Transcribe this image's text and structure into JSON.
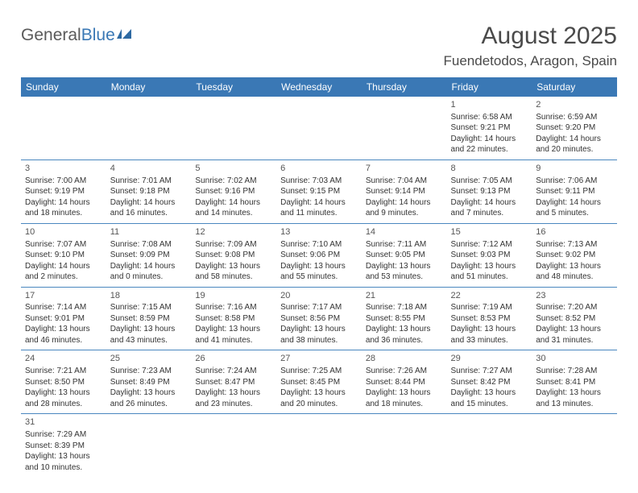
{
  "brand": {
    "part1": "General",
    "part2": "Blue"
  },
  "title": "August 2025",
  "location": "Fuendetodos, Aragon, Spain",
  "day_headers": [
    "Sunday",
    "Monday",
    "Tuesday",
    "Wednesday",
    "Thursday",
    "Friday",
    "Saturday"
  ],
  "colors": {
    "header_bg": "#3a78b5",
    "header_fg": "#ffffff",
    "border": "#4a87bf",
    "text": "#333333",
    "title": "#4a4a4a"
  },
  "weeks": [
    [
      null,
      null,
      null,
      null,
      null,
      {
        "n": "1",
        "sr": "Sunrise: 6:58 AM",
        "ss": "Sunset: 9:21 PM",
        "dl": "Daylight: 14 hours and 22 minutes."
      },
      {
        "n": "2",
        "sr": "Sunrise: 6:59 AM",
        "ss": "Sunset: 9:20 PM",
        "dl": "Daylight: 14 hours and 20 minutes."
      }
    ],
    [
      {
        "n": "3",
        "sr": "Sunrise: 7:00 AM",
        "ss": "Sunset: 9:19 PM",
        "dl": "Daylight: 14 hours and 18 minutes."
      },
      {
        "n": "4",
        "sr": "Sunrise: 7:01 AM",
        "ss": "Sunset: 9:18 PM",
        "dl": "Daylight: 14 hours and 16 minutes."
      },
      {
        "n": "5",
        "sr": "Sunrise: 7:02 AM",
        "ss": "Sunset: 9:16 PM",
        "dl": "Daylight: 14 hours and 14 minutes."
      },
      {
        "n": "6",
        "sr": "Sunrise: 7:03 AM",
        "ss": "Sunset: 9:15 PM",
        "dl": "Daylight: 14 hours and 11 minutes."
      },
      {
        "n": "7",
        "sr": "Sunrise: 7:04 AM",
        "ss": "Sunset: 9:14 PM",
        "dl": "Daylight: 14 hours and 9 minutes."
      },
      {
        "n": "8",
        "sr": "Sunrise: 7:05 AM",
        "ss": "Sunset: 9:13 PM",
        "dl": "Daylight: 14 hours and 7 minutes."
      },
      {
        "n": "9",
        "sr": "Sunrise: 7:06 AM",
        "ss": "Sunset: 9:11 PM",
        "dl": "Daylight: 14 hours and 5 minutes."
      }
    ],
    [
      {
        "n": "10",
        "sr": "Sunrise: 7:07 AM",
        "ss": "Sunset: 9:10 PM",
        "dl": "Daylight: 14 hours and 2 minutes."
      },
      {
        "n": "11",
        "sr": "Sunrise: 7:08 AM",
        "ss": "Sunset: 9:09 PM",
        "dl": "Daylight: 14 hours and 0 minutes."
      },
      {
        "n": "12",
        "sr": "Sunrise: 7:09 AM",
        "ss": "Sunset: 9:08 PM",
        "dl": "Daylight: 13 hours and 58 minutes."
      },
      {
        "n": "13",
        "sr": "Sunrise: 7:10 AM",
        "ss": "Sunset: 9:06 PM",
        "dl": "Daylight: 13 hours and 55 minutes."
      },
      {
        "n": "14",
        "sr": "Sunrise: 7:11 AM",
        "ss": "Sunset: 9:05 PM",
        "dl": "Daylight: 13 hours and 53 minutes."
      },
      {
        "n": "15",
        "sr": "Sunrise: 7:12 AM",
        "ss": "Sunset: 9:03 PM",
        "dl": "Daylight: 13 hours and 51 minutes."
      },
      {
        "n": "16",
        "sr": "Sunrise: 7:13 AM",
        "ss": "Sunset: 9:02 PM",
        "dl": "Daylight: 13 hours and 48 minutes."
      }
    ],
    [
      {
        "n": "17",
        "sr": "Sunrise: 7:14 AM",
        "ss": "Sunset: 9:01 PM",
        "dl": "Daylight: 13 hours and 46 minutes."
      },
      {
        "n": "18",
        "sr": "Sunrise: 7:15 AM",
        "ss": "Sunset: 8:59 PM",
        "dl": "Daylight: 13 hours and 43 minutes."
      },
      {
        "n": "19",
        "sr": "Sunrise: 7:16 AM",
        "ss": "Sunset: 8:58 PM",
        "dl": "Daylight: 13 hours and 41 minutes."
      },
      {
        "n": "20",
        "sr": "Sunrise: 7:17 AM",
        "ss": "Sunset: 8:56 PM",
        "dl": "Daylight: 13 hours and 38 minutes."
      },
      {
        "n": "21",
        "sr": "Sunrise: 7:18 AM",
        "ss": "Sunset: 8:55 PM",
        "dl": "Daylight: 13 hours and 36 minutes."
      },
      {
        "n": "22",
        "sr": "Sunrise: 7:19 AM",
        "ss": "Sunset: 8:53 PM",
        "dl": "Daylight: 13 hours and 33 minutes."
      },
      {
        "n": "23",
        "sr": "Sunrise: 7:20 AM",
        "ss": "Sunset: 8:52 PM",
        "dl": "Daylight: 13 hours and 31 minutes."
      }
    ],
    [
      {
        "n": "24",
        "sr": "Sunrise: 7:21 AM",
        "ss": "Sunset: 8:50 PM",
        "dl": "Daylight: 13 hours and 28 minutes."
      },
      {
        "n": "25",
        "sr": "Sunrise: 7:23 AM",
        "ss": "Sunset: 8:49 PM",
        "dl": "Daylight: 13 hours and 26 minutes."
      },
      {
        "n": "26",
        "sr": "Sunrise: 7:24 AM",
        "ss": "Sunset: 8:47 PM",
        "dl": "Daylight: 13 hours and 23 minutes."
      },
      {
        "n": "27",
        "sr": "Sunrise: 7:25 AM",
        "ss": "Sunset: 8:45 PM",
        "dl": "Daylight: 13 hours and 20 minutes."
      },
      {
        "n": "28",
        "sr": "Sunrise: 7:26 AM",
        "ss": "Sunset: 8:44 PM",
        "dl": "Daylight: 13 hours and 18 minutes."
      },
      {
        "n": "29",
        "sr": "Sunrise: 7:27 AM",
        "ss": "Sunset: 8:42 PM",
        "dl": "Daylight: 13 hours and 15 minutes."
      },
      {
        "n": "30",
        "sr": "Sunrise: 7:28 AM",
        "ss": "Sunset: 8:41 PM",
        "dl": "Daylight: 13 hours and 13 minutes."
      }
    ],
    [
      {
        "n": "31",
        "sr": "Sunrise: 7:29 AM",
        "ss": "Sunset: 8:39 PM",
        "dl": "Daylight: 13 hours and 10 minutes."
      },
      null,
      null,
      null,
      null,
      null,
      null
    ]
  ]
}
